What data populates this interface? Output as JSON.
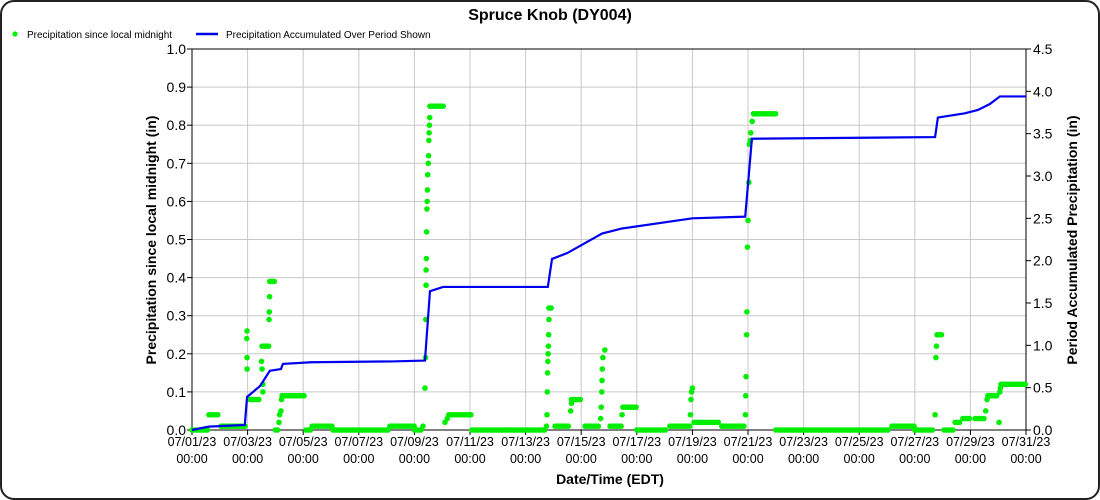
{
  "chart_data": {
    "type": "line",
    "title": "Spruce Knob (DY004)",
    "xlabel": "Date/Time (EDT)",
    "ylabel": "Precipitation since local midnight (in)",
    "y2label": "Period Accumulated Precipitation (in)",
    "legend_position": "top-left",
    "grid": true,
    "x_unit": "days since 07/01/23 00:00",
    "xlim": [
      0,
      30
    ],
    "ylim": [
      0,
      1.0
    ],
    "y2lim": [
      0,
      4.5
    ],
    "x_ticks": [
      {
        "day": 0,
        "date": "07/01/23",
        "time": "00:00"
      },
      {
        "day": 2,
        "date": "07/03/23",
        "time": "00:00"
      },
      {
        "day": 4,
        "date": "07/05/23",
        "time": "00:00"
      },
      {
        "day": 6,
        "date": "07/07/23",
        "time": "00:00"
      },
      {
        "day": 8,
        "date": "07/09/23",
        "time": "00:00"
      },
      {
        "day": 10,
        "date": "07/11/23",
        "time": "00:00"
      },
      {
        "day": 12,
        "date": "07/13/23",
        "time": "00:00"
      },
      {
        "day": 14,
        "date": "07/15/23",
        "time": "00:00"
      },
      {
        "day": 16,
        "date": "07/17/23",
        "time": "00:00"
      },
      {
        "day": 18,
        "date": "07/19/23",
        "time": "00:00"
      },
      {
        "day": 20,
        "date": "07/21/23",
        "time": "00:00"
      },
      {
        "day": 22,
        "date": "07/23/23",
        "time": "00:00"
      },
      {
        "day": 24,
        "date": "07/25/23",
        "time": "00:00"
      },
      {
        "day": 26,
        "date": "07/27/23",
        "time": "00:00"
      },
      {
        "day": 28,
        "date": "07/29/23",
        "time": "00:00"
      },
      {
        "day": 30,
        "date": "07/31/23",
        "time": "00:00"
      }
    ],
    "y_ticks": [
      "0.0",
      "0.1",
      "0.2",
      "0.3",
      "0.4",
      "0.5",
      "0.6",
      "0.7",
      "0.8",
      "0.9",
      "1.0"
    ],
    "y2_ticks": [
      "0.0",
      "0.5",
      "1.0",
      "1.5",
      "2.0",
      "2.5",
      "3.0",
      "3.5",
      "4.0",
      "4.5"
    ],
    "series": [
      {
        "name": "Precipitation since local midnight",
        "axis": "left",
        "style": "points",
        "color": "#00ee00",
        "plateaus": [
          [
            0,
            0.6,
            0
          ],
          [
            0.61,
            1.0,
            0.04
          ],
          [
            1.04,
            1.98,
            0.01
          ],
          [
            2.09,
            2.48,
            0.08
          ],
          [
            2.52,
            2.77,
            0.22
          ],
          [
            2.8,
            3.02,
            0.39
          ],
          [
            3.0,
            3.1,
            0
          ],
          [
            3.24,
            4.06,
            0.09
          ],
          [
            4.1,
            4.3,
            0
          ],
          [
            4.32,
            5.07,
            0.01
          ],
          [
            5.07,
            7.1,
            0
          ],
          [
            7.12,
            7.99,
            0.01
          ],
          [
            8.0,
            8.3,
            0
          ],
          [
            8.56,
            9.06,
            0.85
          ],
          [
            9.24,
            10.07,
            0.04
          ],
          [
            10.07,
            12.75,
            0
          ],
          [
            12.84,
            12.95,
            0.32
          ],
          [
            13.06,
            13.6,
            0.01
          ],
          [
            13.65,
            14.03,
            0.08
          ],
          [
            14.14,
            14.68,
            0.01
          ],
          [
            15.04,
            15.47,
            0.01
          ],
          [
            15.5,
            16.0,
            0.06
          ],
          [
            16.0,
            17.1,
            0
          ],
          [
            17.19,
            17.91,
            0.01
          ],
          [
            18.06,
            18.99,
            0.02
          ],
          [
            19.06,
            19.89,
            0.01
          ],
          [
            20.2,
            21.0,
            0.83
          ],
          [
            21.0,
            25.1,
            0
          ],
          [
            25.18,
            25.97,
            0.01
          ],
          [
            26.0,
            26.7,
            0
          ],
          [
            26.8,
            27.01,
            0.25
          ],
          [
            27.05,
            27.4,
            0
          ],
          [
            27.45,
            27.63,
            0.02
          ],
          [
            27.73,
            27.99,
            0.03
          ],
          [
            28.17,
            28.53,
            0.03
          ],
          [
            28.63,
            28.99,
            0.09
          ],
          [
            29.1,
            30,
            0.12
          ]
        ],
        "points": [
          [
            1.98,
            0.16
          ],
          [
            1.98,
            0.19
          ],
          [
            1.97,
            0.24
          ],
          [
            1.98,
            0.26
          ],
          [
            2.55,
            0.1
          ],
          [
            2.55,
            0.12
          ],
          [
            2.52,
            0.16
          ],
          [
            2.5,
            0.18
          ],
          [
            2.77,
            0.29
          ],
          [
            2.78,
            0.31
          ],
          [
            2.79,
            0.35
          ],
          [
            3.13,
            0.02
          ],
          [
            3.15,
            0.04
          ],
          [
            3.2,
            0.05
          ],
          [
            3.22,
            0.08
          ],
          [
            8.31,
            0.01
          ],
          [
            8.38,
            0.11
          ],
          [
            8.4,
            0.19
          ],
          [
            8.41,
            0.29
          ],
          [
            8.42,
            0.38
          ],
          [
            8.42,
            0.42
          ],
          [
            8.43,
            0.45
          ],
          [
            8.44,
            0.52
          ],
          [
            8.45,
            0.58
          ],
          [
            8.46,
            0.6
          ],
          [
            8.47,
            0.63
          ],
          [
            8.48,
            0.67
          ],
          [
            8.5,
            0.7
          ],
          [
            8.51,
            0.72
          ],
          [
            8.52,
            0.76
          ],
          [
            8.53,
            0.78
          ],
          [
            8.54,
            0.8
          ],
          [
            8.55,
            0.82
          ],
          [
            9.1,
            0.02
          ],
          [
            9.18,
            0.03
          ],
          [
            12.75,
            0.01
          ],
          [
            12.77,
            0.04
          ],
          [
            12.78,
            0.1
          ],
          [
            12.79,
            0.15
          ],
          [
            12.8,
            0.18
          ],
          [
            12.81,
            0.2
          ],
          [
            12.82,
            0.22
          ],
          [
            12.83,
            0.25
          ],
          [
            12.84,
            0.29
          ],
          [
            13.62,
            0.05
          ],
          [
            13.65,
            0.07
          ],
          [
            14.7,
            0.03
          ],
          [
            14.72,
            0.06
          ],
          [
            14.74,
            0.1
          ],
          [
            14.75,
            0.13
          ],
          [
            14.76,
            0.16
          ],
          [
            14.78,
            0.19
          ],
          [
            14.85,
            0.21
          ],
          [
            15.47,
            0.04
          ],
          [
            17.93,
            0.04
          ],
          [
            17.95,
            0.08
          ],
          [
            17.97,
            0.1
          ],
          [
            18.0,
            0.11
          ],
          [
            19.91,
            0.04
          ],
          [
            19.92,
            0.09
          ],
          [
            19.93,
            0.14
          ],
          [
            19.95,
            0.25
          ],
          [
            19.96,
            0.31
          ],
          [
            19.98,
            0.48
          ],
          [
            20.0,
            0.55
          ],
          [
            20.03,
            0.65
          ],
          [
            20.05,
            0.75
          ],
          [
            20.08,
            0.76
          ],
          [
            20.1,
            0.78
          ],
          [
            20.15,
            0.81
          ],
          [
            26.73,
            0.04
          ],
          [
            26.76,
            0.19
          ],
          [
            26.78,
            0.22
          ],
          [
            28.55,
            0.05
          ],
          [
            28.6,
            0.08
          ],
          [
            29.03,
            0.02
          ],
          [
            29.06,
            0.1
          ],
          [
            29.08,
            0.11
          ]
        ]
      },
      {
        "name": "Precipitation Accumulated Over Period Shown",
        "axis": "right",
        "style": "step-line",
        "color": "#0000ee",
        "points": [
          [
            0,
            0
          ],
          [
            0.6,
            0.04
          ],
          [
            1.9,
            0.06
          ],
          [
            1.98,
            0.39
          ],
          [
            2.45,
            0.52
          ],
          [
            2.8,
            0.7
          ],
          [
            3.2,
            0.72
          ],
          [
            3.27,
            0.78
          ],
          [
            4.28,
            0.8
          ],
          [
            7.19,
            0.81
          ],
          [
            8.38,
            0.82
          ],
          [
            8.56,
            1.64
          ],
          [
            9.03,
            1.69
          ],
          [
            12.8,
            1.69
          ],
          [
            12.95,
            2.02
          ],
          [
            13.5,
            2.09
          ],
          [
            14.75,
            2.32
          ],
          [
            15.47,
            2.38
          ],
          [
            18.0,
            2.5
          ],
          [
            19.9,
            2.52
          ],
          [
            20.14,
            3.44
          ],
          [
            26.73,
            3.46
          ],
          [
            26.83,
            3.69
          ],
          [
            27.8,
            3.74
          ],
          [
            28.27,
            3.78
          ],
          [
            28.7,
            3.85
          ],
          [
            29.06,
            3.94
          ],
          [
            30,
            3.94
          ]
        ]
      }
    ]
  }
}
